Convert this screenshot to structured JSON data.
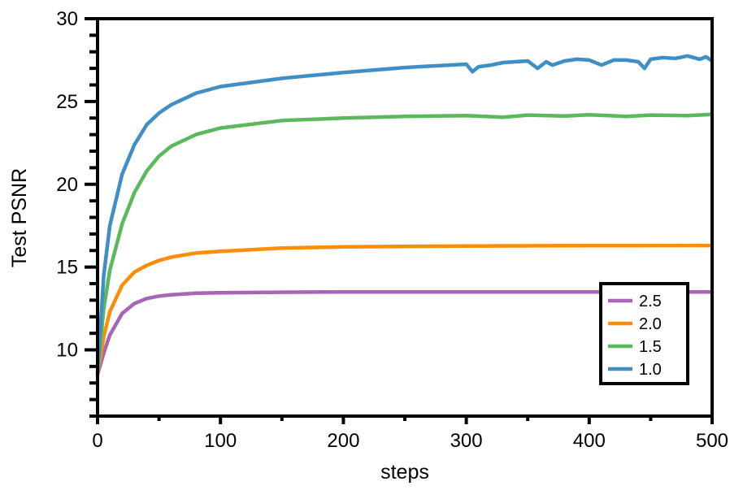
{
  "chart_data": {
    "type": "line",
    "title": "",
    "xlabel": "steps",
    "ylabel": "Test PSNR",
    "xlim": [
      0,
      500
    ],
    "ylim": [
      6,
      30
    ],
    "xticks": [
      0,
      100,
      200,
      300,
      400,
      500
    ],
    "yticks": [
      10,
      15,
      20,
      25,
      30
    ],
    "grid": false,
    "legend_position": "lower-right",
    "series": [
      {
        "name": "2.5",
        "color": "#a865b5",
        "x": [
          0,
          5,
          10,
          20,
          30,
          40,
          50,
          60,
          80,
          100,
          150,
          200,
          300,
          400,
          500
        ],
        "y": [
          8.5,
          9.8,
          10.9,
          12.2,
          12.8,
          13.1,
          13.25,
          13.33,
          13.42,
          13.45,
          13.48,
          13.5,
          13.5,
          13.5,
          13.5
        ]
      },
      {
        "name": "2.0",
        "color": "#fa8e0a",
        "x": [
          0,
          5,
          10,
          20,
          30,
          40,
          50,
          60,
          80,
          100,
          150,
          200,
          300,
          400,
          500
        ],
        "y": [
          8.5,
          10.8,
          12.3,
          13.9,
          14.7,
          15.1,
          15.4,
          15.6,
          15.85,
          15.95,
          16.15,
          16.22,
          16.27,
          16.29,
          16.3
        ]
      },
      {
        "name": "1.5",
        "color": "#5cb85c",
        "x": [
          0,
          5,
          10,
          20,
          30,
          40,
          50,
          60,
          80,
          100,
          150,
          200,
          250,
          300,
          330,
          350,
          380,
          400,
          430,
          450,
          480,
          500
        ],
        "y": [
          8.6,
          12.5,
          14.8,
          17.6,
          19.5,
          20.8,
          21.7,
          22.3,
          23.0,
          23.4,
          23.85,
          24.0,
          24.1,
          24.15,
          24.05,
          24.18,
          24.12,
          24.2,
          24.1,
          24.18,
          24.15,
          24.22
        ]
      },
      {
        "name": "1.0",
        "color": "#3f8fc6",
        "x": [
          0,
          5,
          10,
          20,
          30,
          40,
          50,
          60,
          80,
          100,
          150,
          200,
          250,
          300,
          305,
          310,
          320,
          330,
          340,
          350,
          358,
          365,
          370,
          380,
          390,
          400,
          410,
          420,
          430,
          440,
          445,
          450,
          460,
          470,
          480,
          490,
          495,
          500
        ],
        "y": [
          8.6,
          14.5,
          17.5,
          20.6,
          22.4,
          23.6,
          24.3,
          24.8,
          25.5,
          25.9,
          26.4,
          26.75,
          27.05,
          27.25,
          26.8,
          27.1,
          27.2,
          27.35,
          27.4,
          27.45,
          27.0,
          27.4,
          27.2,
          27.45,
          27.55,
          27.5,
          27.2,
          27.5,
          27.5,
          27.4,
          27.0,
          27.55,
          27.65,
          27.6,
          27.75,
          27.55,
          27.7,
          27.45
        ]
      }
    ],
    "legend_order": [
      0,
      1,
      2,
      3
    ]
  }
}
